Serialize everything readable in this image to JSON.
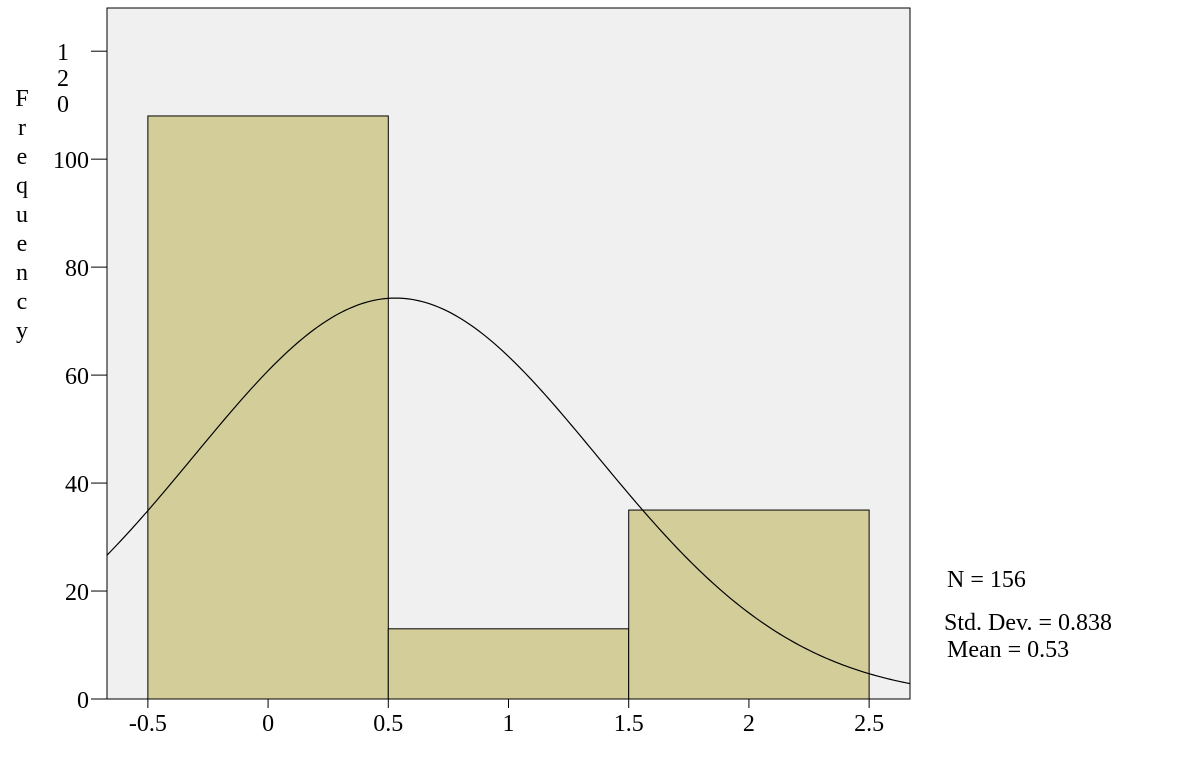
{
  "chart_data": {
    "type": "bar",
    "subtype": "histogram",
    "title": "",
    "xlabel": "",
    "ylabel": "Frequency",
    "bins": [
      {
        "x0": -0.5,
        "x1": 0.5,
        "value": 108
      },
      {
        "x0": 0.5,
        "x1": 1.5,
        "value": 13
      },
      {
        "x0": 1.5,
        "x1": 2.5,
        "value": 35
      }
    ],
    "xlim": [
      -0.67,
      2.67
    ],
    "ylim": [
      0,
      128
    ],
    "xticks": [
      "-0.5",
      "0",
      "0.5",
      "1",
      "1.5",
      "2",
      "2.5"
    ],
    "xtick_values": [
      -0.5,
      0,
      0.5,
      1,
      1.5,
      2,
      2.5
    ],
    "yticks": [
      {
        "value": 0,
        "label": "0"
      },
      {
        "value": 20,
        "label": "20"
      },
      {
        "value": 40,
        "label": "40"
      },
      {
        "value": 60,
        "label": "60"
      },
      {
        "value": 80,
        "label": "80"
      },
      {
        "value": 100,
        "label": "100"
      },
      {
        "value": 120,
        "label": "120"
      }
    ],
    "normal_curve": {
      "mean": 0.53,
      "std": 0.838,
      "n": 156,
      "bin_width": 1
    },
    "stats": {
      "n_label": "N = 156",
      "std_label": "Std. Dev. = 0.838",
      "mean_label": "Mean = 0.53"
    },
    "grid": false,
    "legend": "none",
    "colors": {
      "plot_background": "#f0f0f0",
      "bar_fill": "#d3ce99",
      "bar_stroke": "#000000",
      "curve": "#000000"
    }
  }
}
